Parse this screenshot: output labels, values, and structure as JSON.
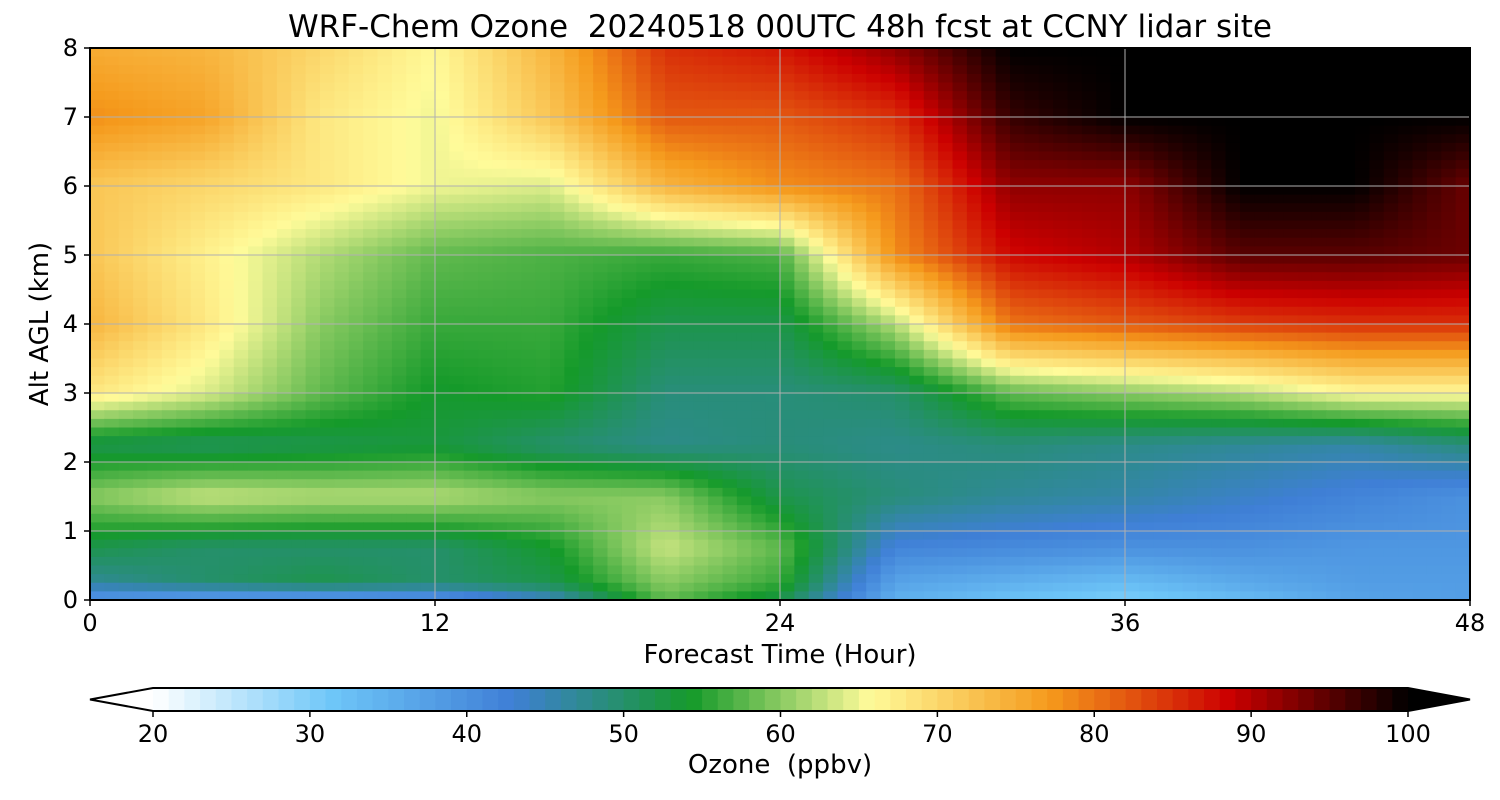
{
  "chart_data": {
    "type": "heatmap",
    "title": "WRF-Chem Ozone  20240518 00UTC 48h fcst at CCNY lidar site",
    "xlabel": "Forecast Time (Hour)",
    "ylabel": "Alt AGL (km)",
    "xlim": [
      0,
      48
    ],
    "ylim": [
      0,
      8
    ],
    "x_ticks": [
      0,
      12,
      24,
      36,
      48
    ],
    "y_ticks": [
      0,
      1,
      2,
      3,
      4,
      5,
      6,
      7,
      8
    ],
    "grid": true,
    "colorbar": {
      "label": "Ozone  (ppbv)",
      "range": [
        20,
        100
      ],
      "ticks": [
        20,
        30,
        40,
        50,
        60,
        70,
        80,
        90,
        100
      ],
      "extend": "both",
      "colors": [
        "#ffffff",
        "#6ec6f8",
        "#3f7fd6",
        "#159a2a",
        "#fffb9a",
        "#f59a1c",
        "#cc0000",
        "#000000"
      ]
    },
    "x": [
      0,
      4,
      8,
      12,
      16,
      20,
      24,
      28,
      32,
      36,
      40,
      44,
      48
    ],
    "y": [
      0,
      0.25,
      0.75,
      1.5,
      2.25,
      3,
      4,
      5,
      6,
      7,
      8
    ],
    "values": [
      [
        38,
        36,
        36,
        38,
        44,
        58,
        52,
        35,
        32,
        30,
        33,
        37,
        38
      ],
      [
        47,
        50,
        52,
        50,
        52,
        60,
        56,
        37,
        35,
        33,
        36,
        38,
        38
      ],
      [
        52,
        50,
        50,
        50,
        54,
        63,
        58,
        42,
        41,
        40,
        40,
        39,
        39
      ],
      [
        60,
        63,
        62,
        62,
        60,
        60,
        52,
        49,
        47,
        46,
        44,
        42,
        40
      ],
      [
        52,
        51,
        52,
        53,
        50,
        48,
        49,
        48,
        49,
        48,
        47,
        46,
        49
      ],
      [
        68,
        64,
        58,
        54,
        55,
        49,
        49,
        50,
        58,
        60,
        62,
        66,
        66
      ],
      [
        74,
        68,
        60,
        56,
        56,
        52,
        52,
        62,
        80,
        82,
        84,
        85,
        85
      ],
      [
        72,
        67,
        62,
        58,
        57,
        56,
        57,
        78,
        88,
        90,
        95,
        95,
        94
      ],
      [
        72,
        70,
        68,
        65,
        64,
        74,
        78,
        80,
        92,
        92,
        100,
        100,
        94
      ],
      [
        78,
        76,
        68,
        65,
        72,
        82,
        82,
        85,
        97,
        100,
        100,
        100,
        100
      ],
      [
        75,
        74,
        70,
        66,
        74,
        85,
        87,
        92,
        100,
        100,
        100,
        100,
        100
      ]
    ]
  }
}
